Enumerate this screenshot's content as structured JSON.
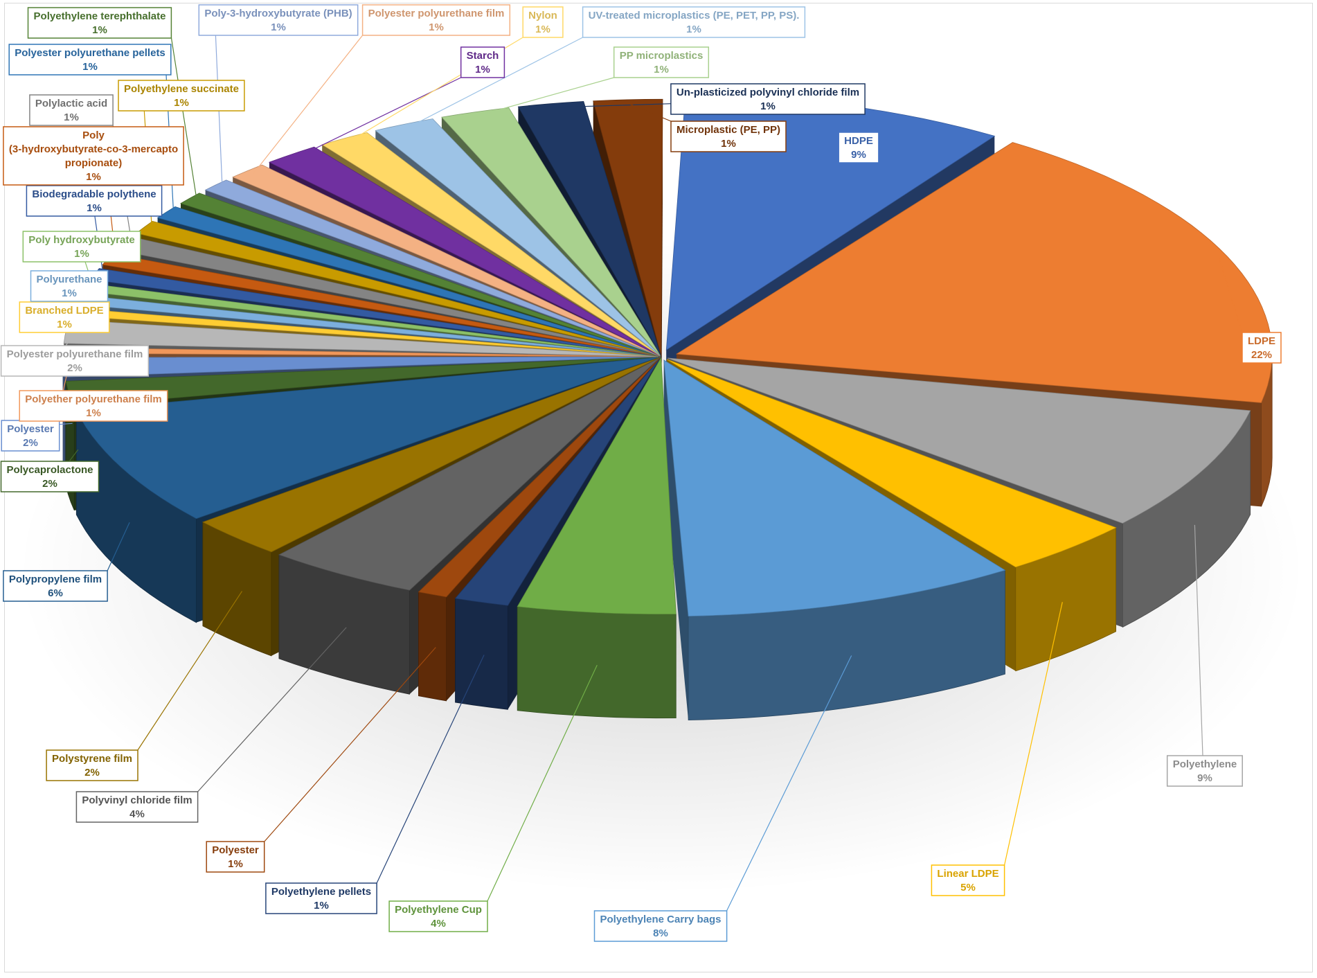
{
  "chart_data": {
    "type": "pie",
    "title": "",
    "style": "3d-exploded",
    "slices": [
      {
        "label": "HDPE",
        "value_label": "9%",
        "value": 9,
        "color": "#4472C4"
      },
      {
        "label": "LDPE",
        "value_label": "22%",
        "value": 22,
        "color": "#ED7D31"
      },
      {
        "label": "Polyethylene",
        "value_label": "9%",
        "value": 9,
        "color": "#A5A5A5"
      },
      {
        "label": "Linear LDPE",
        "value_label": "5%",
        "value": 5,
        "color": "#FFC000"
      },
      {
        "label": "Polyethylene Carry bags",
        "value_label": "8%",
        "value": 8,
        "color": "#5B9BD5"
      },
      {
        "label": "Polyethylene Cup",
        "value_label": "4%",
        "value": 4,
        "color": "#70AD47"
      },
      {
        "label": "Polyethylene pellets",
        "value_label": "1%",
        "value": 1,
        "color": "#264478"
      },
      {
        "label": "Polyester",
        "value_label": "1%",
        "value": 1,
        "color": "#9E480E"
      },
      {
        "label": "Polyvinyl chloride film",
        "value_label": "4%",
        "value": 4,
        "color": "#636363"
      },
      {
        "label": "Polystyrene film",
        "value_label": "2%",
        "value": 2,
        "color": "#997300"
      },
      {
        "label": "Polypropylene film",
        "value_label": "6%",
        "value": 6,
        "color": "#255E91"
      },
      {
        "label": "Polycaprolactone",
        "value_label": "2%",
        "value": 2,
        "color": "#43682B"
      },
      {
        "label": "Polyester",
        "value_label": "2%",
        "value": 2,
        "color": "#698ED0"
      },
      {
        "label": "Polyether polyurethane film",
        "value_label": "1%",
        "value": 1,
        "color": "#F1975A"
      },
      {
        "label": "Polyester polyurethane film",
        "value_label": "2%",
        "value": 2,
        "color": "#B7B7B7"
      },
      {
        "label": "Branched LDPE",
        "value_label": "1%",
        "value": 1,
        "color": "#FFCD33"
      },
      {
        "label": "Polyurethane",
        "value_label": "1%",
        "value": 1,
        "color": "#7CAFDD"
      },
      {
        "label": "Poly hydroxybutyrate",
        "value_label": "1%",
        "value": 1,
        "color": "#8CC168"
      },
      {
        "label": "Biodegradable polythene",
        "value_label": "1%",
        "value": 1,
        "color": "#335AA1"
      },
      {
        "label": "Poly (3-hydroxybutyrate-co-3-mercapto propionate)",
        "value_label": "1%",
        "value": 1,
        "color": "#C55A11"
      },
      {
        "label": "Polylactic acid",
        "value_label": "1%",
        "value": 1,
        "color": "#848484"
      },
      {
        "label": "Polyethylene succinate",
        "value_label": "1%",
        "value": 1,
        "color": "#C89B00"
      },
      {
        "label": "Polyester polyurethane pellets",
        "value_label": "1%",
        "value": 1,
        "color": "#2E75B6"
      },
      {
        "label": "Polyethylene terephthalate",
        "value_label": "1%",
        "value": 1,
        "color": "#548235"
      },
      {
        "label": "Poly-3-hydroxybutyrate (PHB)",
        "value_label": "1%",
        "value": 1,
        "color": "#8FAADC"
      },
      {
        "label": "Polyester polyurethane film",
        "value_label": "1%",
        "value": 1,
        "color": "#F4B183"
      },
      {
        "label": "Starch",
        "value_label": "1%",
        "value": 1,
        "color": "#7030A0"
      },
      {
        "label": "Nylon",
        "value_label": "1%",
        "value": 1,
        "color": "#FFD966"
      },
      {
        "label": "UV-treated microplastics (PE, PET, PP, PS).",
        "value_label": "1%",
        "value": 1,
        "color": "#9DC3E6"
      },
      {
        "label": "PP microplastics",
        "value_label": "1%",
        "value": 1,
        "color": "#A9D18E"
      },
      {
        "label": "Un-plasticized polyvinyl chloride film",
        "value_label": "1%",
        "value": 1,
        "color": "#1F3864"
      },
      {
        "label": "Microplastic (PE, PP)",
        "value_label": "1%",
        "value": 1,
        "color": "#843C0C"
      }
    ],
    "legend": "none",
    "data_labels": "callout-boxes"
  }
}
